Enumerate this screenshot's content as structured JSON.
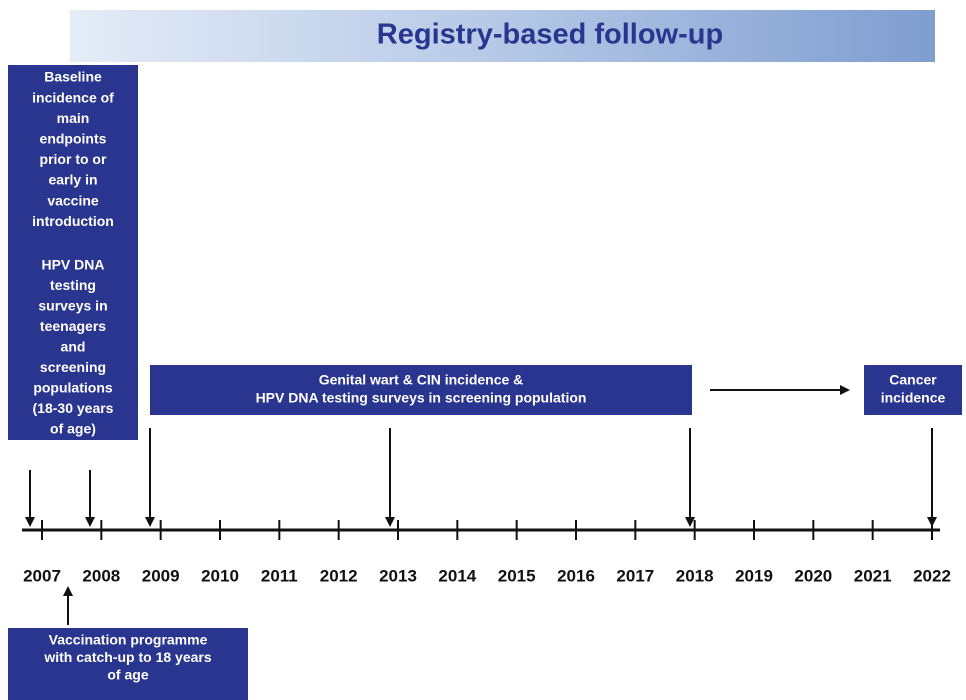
{
  "header": {
    "title": "Registry-based follow-up"
  },
  "left_box": {
    "lines": [
      "Baseline",
      "incidence of",
      "main",
      "endpoints",
      "prior to or",
      "early in",
      "vaccine",
      "introduction",
      "HPV DNA",
      "testing",
      "surveys in",
      "teenagers",
      "and",
      "screening",
      "populations",
      "(18-30 years",
      "of age)"
    ]
  },
  "middle_box": {
    "lines": [
      "Genital wart & CIN incidence &",
      "HPV DNA testing surveys in screening population"
    ]
  },
  "cancer_box": {
    "lines": [
      "Cancer",
      "incidence"
    ]
  },
  "timeline": {
    "years": [
      2007,
      2008,
      2009,
      2010,
      2011,
      2012,
      2013,
      2014,
      2015,
      2016,
      2017,
      2018,
      2019,
      2020,
      2021,
      2022
    ]
  },
  "bottom_box": {
    "lines": [
      "Vaccination programme",
      "with catch-up to 18 years",
      "of age"
    ]
  }
}
